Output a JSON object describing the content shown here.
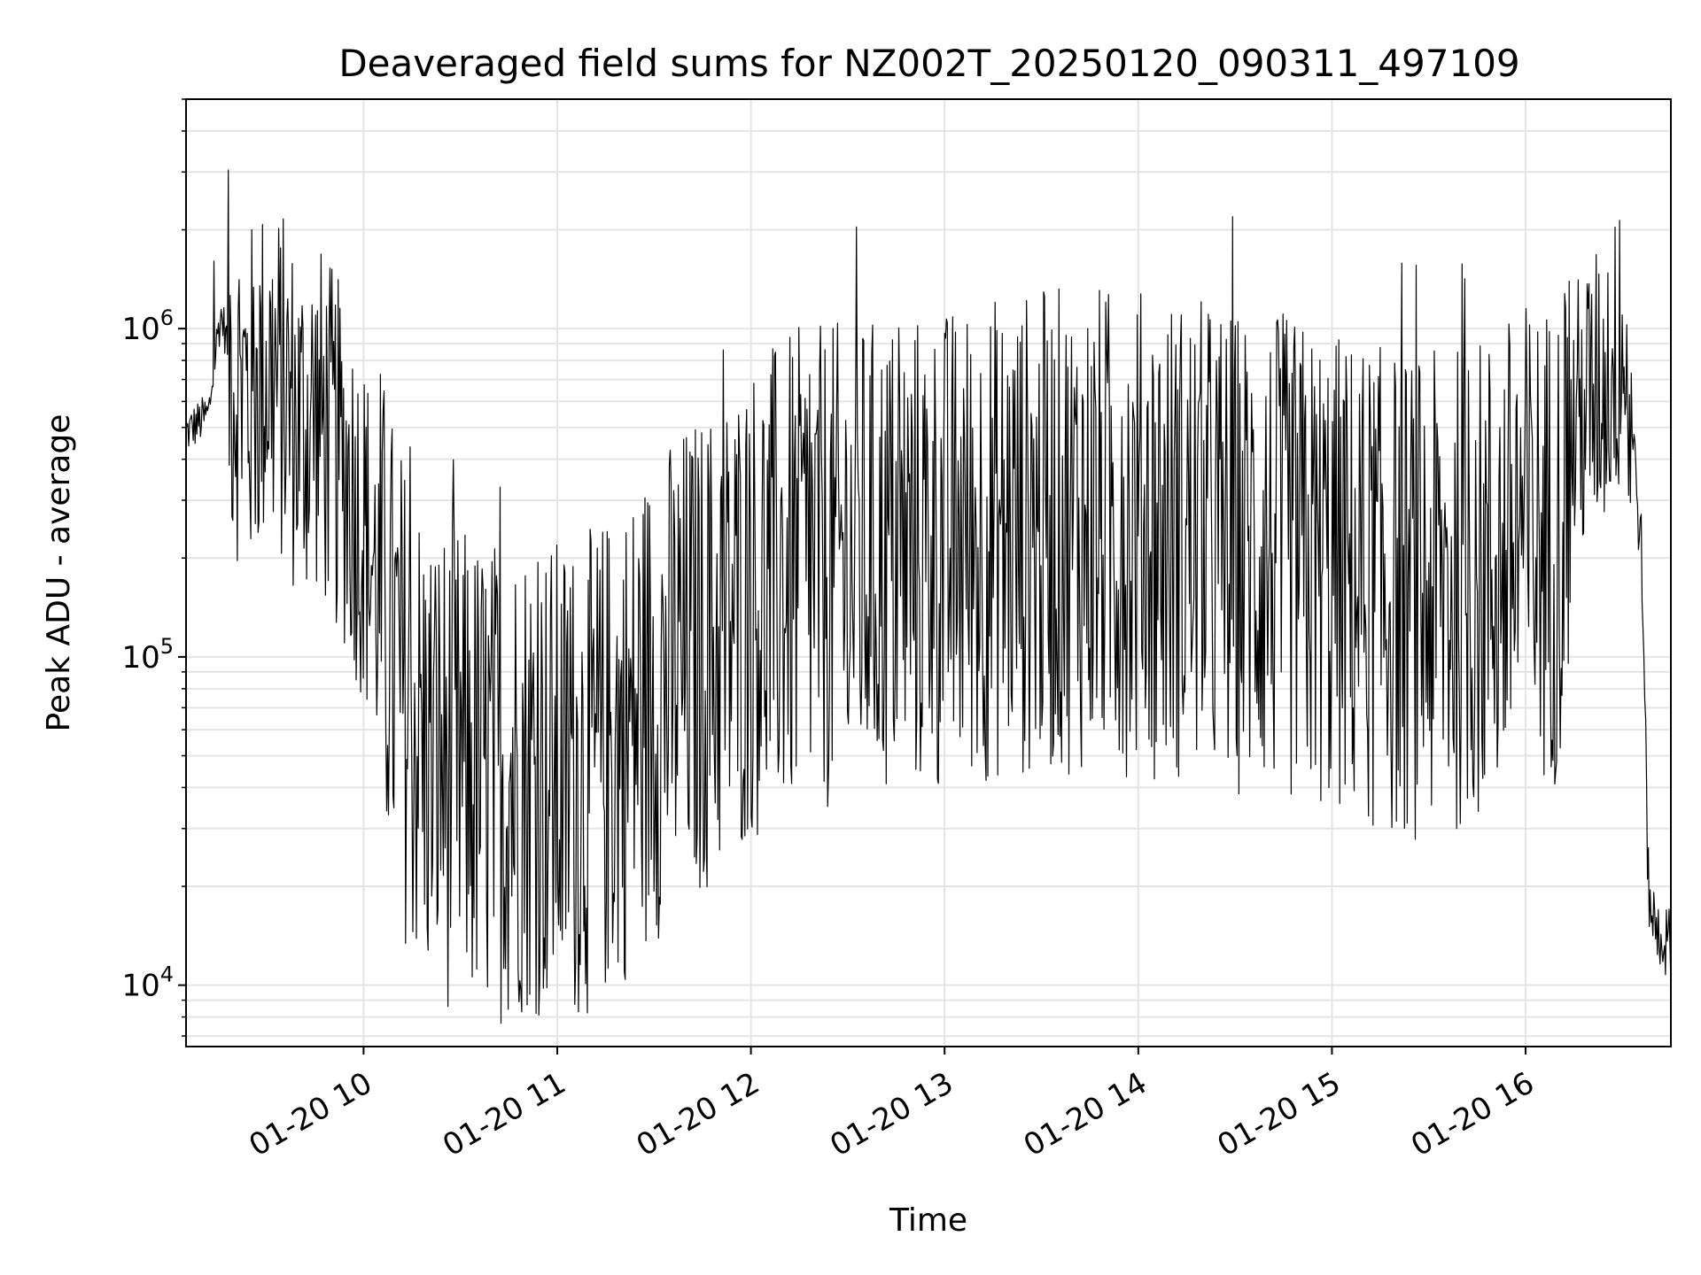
{
  "chart_data": {
    "type": "line",
    "title": "Deaveraged field sums for NZ002T_20250120_090311_497109",
    "xlabel": "Time",
    "ylabel": "Peak ADU - average",
    "x_ticks": [
      "01-20 10",
      "01-20 11",
      "01-20 12",
      "01-20 13",
      "01-20 14",
      "01-20 15",
      "01-20 16"
    ],
    "y_ticks": [
      {
        "value": 10000,
        "base": "10",
        "exponent": "4"
      },
      {
        "value": 100000,
        "base": "10",
        "exponent": "5"
      },
      {
        "value": 1000000,
        "base": "10",
        "exponent": "6"
      }
    ],
    "xlim": [
      "2025-01-20 09:05",
      "2025-01-20 16:45"
    ],
    "ylim": [
      6500,
      5000000
    ],
    "yscale": "log",
    "grid": true,
    "line_color": "#000000",
    "series": [
      {
        "x": [
          "2025-01-20 09:05",
          "2025-01-20 09:12",
          "2025-01-20 09:15",
          "2025-01-20 09:16",
          "2025-01-20 09:20",
          "2025-01-20 09:25",
          "2025-01-20 09:30",
          "2025-01-20 09:35",
          "2025-01-20 09:40",
          "2025-01-20 09:45",
          "2025-01-20 09:50",
          "2025-01-20 09:55",
          "2025-01-20 10:00",
          "2025-01-20 10:05",
          "2025-01-20 10:10",
          "2025-01-20 10:15",
          "2025-01-20 10:20",
          "2025-01-20 10:30",
          "2025-01-20 10:40",
          "2025-01-20 10:50",
          "2025-01-20 11:00",
          "2025-01-20 11:10",
          "2025-01-20 11:20",
          "2025-01-20 11:30",
          "2025-01-20 11:40",
          "2025-01-20 11:50",
          "2025-01-20 12:00",
          "2025-01-20 12:15",
          "2025-01-20 12:30",
          "2025-01-20 12:45",
          "2025-01-20 13:00",
          "2025-01-20 13:15",
          "2025-01-20 13:30",
          "2025-01-20 13:45",
          "2025-01-20 14:00",
          "2025-01-20 14:15",
          "2025-01-20 14:30",
          "2025-01-20 14:45",
          "2025-01-20 15:00",
          "2025-01-20 15:15",
          "2025-01-20 15:30",
          "2025-01-20 15:45",
          "2025-01-20 16:00",
          "2025-01-20 16:10",
          "2025-01-20 16:15",
          "2025-01-20 16:20",
          "2025-01-20 16:25",
          "2025-01-20 16:30",
          "2025-01-20 16:33",
          "2025-01-20 16:36",
          "2025-01-20 16:38",
          "2025-01-20 16:40",
          "2025-01-20 16:45"
        ],
        "values": [
          480000,
          550000,
          1000000,
          1100000,
          700000,
          600000,
          750000,
          650000,
          500000,
          550000,
          450000,
          350000,
          250000,
          150000,
          90000,
          65000,
          50000,
          45000,
          42000,
          45000,
          42000,
          44000,
          55000,
          75000,
          95000,
          110000,
          150000,
          180000,
          190000,
          200000,
          210000,
          230000,
          240000,
          250000,
          240000,
          230000,
          210000,
          200000,
          180000,
          160000,
          150000,
          170000,
          220000,
          230000,
          500000,
          600000,
          700000,
          900000,
          500000,
          200000,
          20000,
          15000,
          13000
        ]
      }
    ]
  }
}
